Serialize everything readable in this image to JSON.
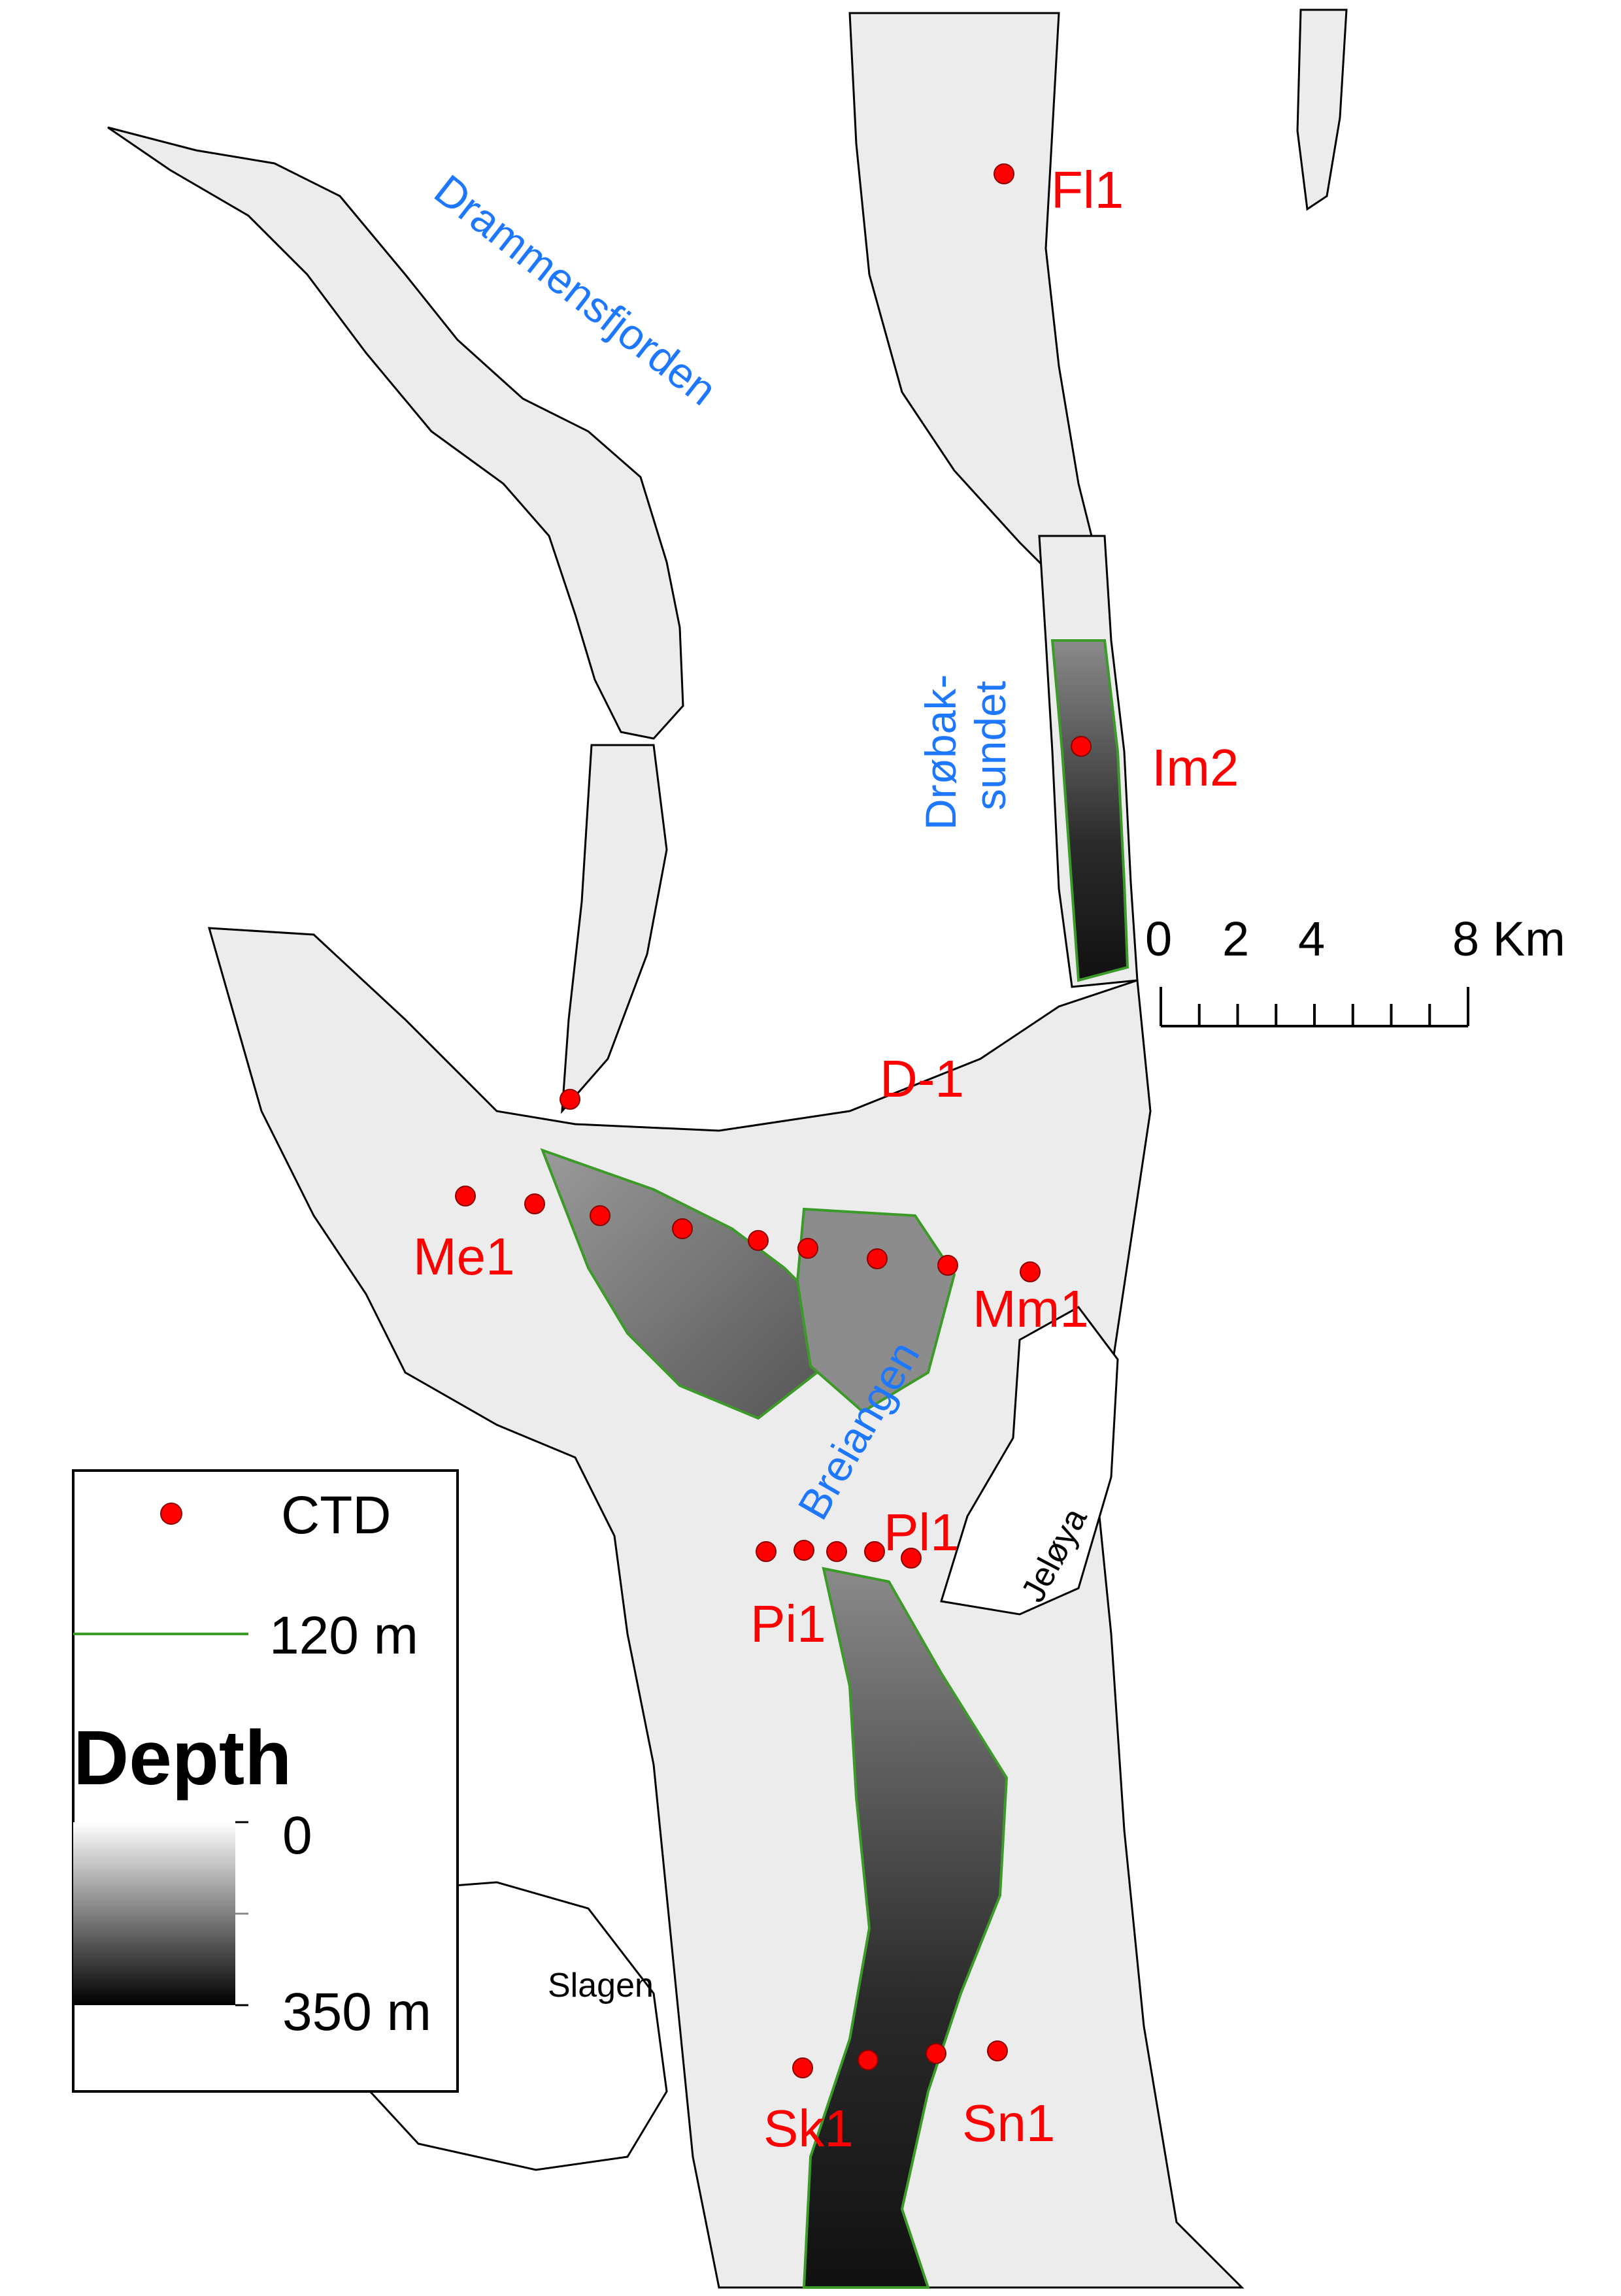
{
  "colors": {
    "station": "#ff0000",
    "station_label": "#ff0000",
    "water_name": "#1e78ff",
    "land_name": "#000000",
    "isobath": "#3c9b28",
    "depth_shallow": "#ffffff",
    "depth_deep": "#000000"
  },
  "water_names": [
    {
      "id": "drammensfjorden",
      "text": "Drammensfjorden"
    },
    {
      "id": "drobak-1",
      "text": "Drøbak-"
    },
    {
      "id": "drobak-2",
      "text": "sundet"
    },
    {
      "id": "breiangen",
      "text": "Breiangen"
    }
  ],
  "place_names": [
    {
      "id": "jeloya",
      "text": "Jeløya"
    },
    {
      "id": "slagen",
      "text": "Slagen"
    }
  ],
  "stations": [
    {
      "id": "Fl1",
      "label": "Fl1"
    },
    {
      "id": "Im2",
      "label": "Im2"
    },
    {
      "id": "D-1",
      "label": "D-1"
    },
    {
      "id": "Me1",
      "label": "Me1"
    },
    {
      "id": "Mm1",
      "label": "Mm1"
    },
    {
      "id": "Pl1",
      "label": "Pl1"
    },
    {
      "id": "Pi1",
      "label": "Pi1"
    },
    {
      "id": "Sk1",
      "label": "Sk1"
    },
    {
      "id": "Sn1",
      "label": "Sn1"
    }
  ],
  "scale_bar": {
    "ticks": [
      "0",
      "2",
      "4",
      "8 Km"
    ]
  },
  "legend": {
    "ctd_label": "CTD",
    "isobath_label": "120 m",
    "depth_title": "Depth",
    "depth_min": "0",
    "depth_max": "350 m"
  }
}
